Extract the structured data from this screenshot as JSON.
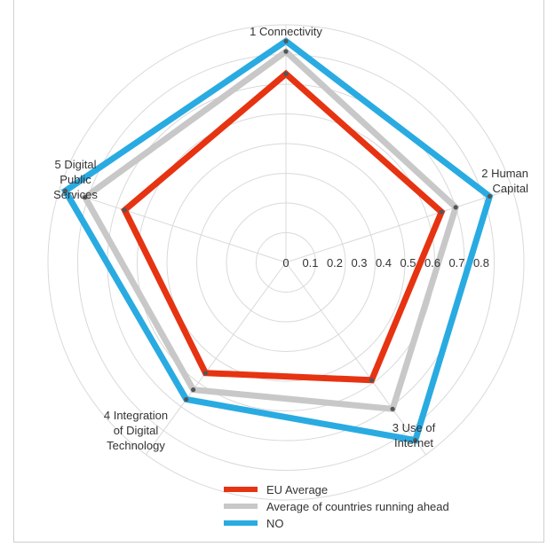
{
  "chart_data": {
    "type": "radar",
    "axes": [
      {
        "lines": [
          "1 Connectivity"
        ]
      },
      {
        "lines": [
          "2 Human",
          "Capital"
        ]
      },
      {
        "lines": [
          "3 Use of",
          "Internet"
        ]
      },
      {
        "lines": [
          "4 Integration",
          "of Digital",
          "Technology"
        ]
      },
      {
        "lines": [
          "5 Digital",
          "Public",
          "Services"
        ]
      }
    ],
    "ticks": [
      "0",
      "0.1",
      "0.2",
      "0.3",
      "0.4",
      "0.5",
      "0.6",
      "0.7",
      "0.8"
    ],
    "rlim": [
      0,
      0.8
    ],
    "grid": true,
    "legend_position": "bottom",
    "series": [
      {
        "name": "Average of countries running ahead",
        "color": "#c8c8c8",
        "values": [
          0.71,
          0.6,
          0.61,
          0.53,
          0.71
        ]
      },
      {
        "name": "NO",
        "color": "#29abe2",
        "values": [
          0.745,
          0.72,
          0.74,
          0.57,
          0.78
        ]
      },
      {
        "name": "EU Average",
        "color": "#e63312",
        "values": [
          0.635,
          0.55,
          0.49,
          0.46,
          0.57
        ]
      }
    ],
    "legend": [
      {
        "name": "EU Average",
        "color": "#e63312"
      },
      {
        "name": "Average of countries running ahead",
        "color": "#c8c8c8"
      },
      {
        "name": "NO",
        "color": "#29abe2"
      }
    ]
  }
}
